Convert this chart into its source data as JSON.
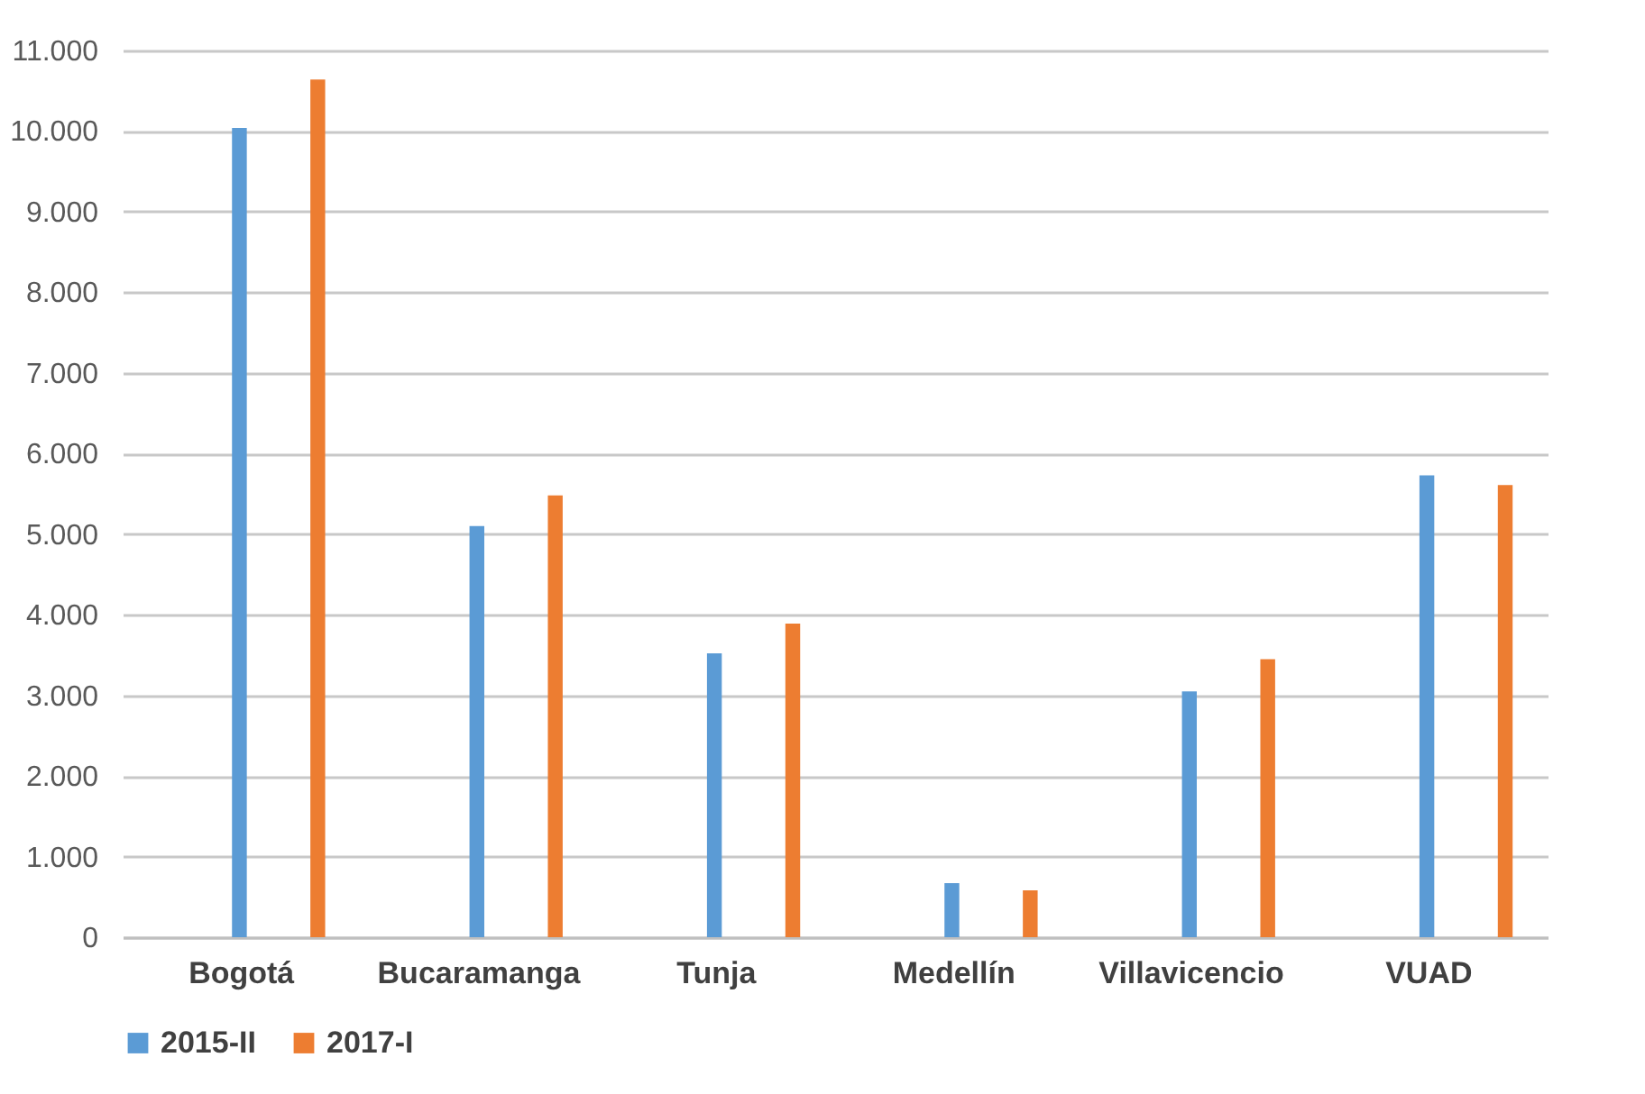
{
  "chart_data": {
    "type": "bar",
    "categories": [
      "Bogotá",
      "Bucaramanga",
      "Tunja",
      "Medellín",
      "Villavicencio",
      "VUAD"
    ],
    "series": [
      {
        "name": "2015-II",
        "color": "#5b9bd5",
        "values": [
          10040,
          5100,
          3520,
          670,
          3050,
          5730
        ]
      },
      {
        "name": "2017-I",
        "color": "#ed7d31",
        "values": [
          10640,
          5480,
          3890,
          580,
          3450,
          5610
        ]
      }
    ],
    "ylim": [
      0,
      11000
    ],
    "yticks": [
      {
        "value": 0,
        "label": "0"
      },
      {
        "value": 1000,
        "label": "1.000"
      },
      {
        "value": 2000,
        "label": "2.000"
      },
      {
        "value": 3000,
        "label": "3.000"
      },
      {
        "value": 4000,
        "label": "4.000"
      },
      {
        "value": 5000,
        "label": "5.000"
      },
      {
        "value": 6000,
        "label": "6.000"
      },
      {
        "value": 7000,
        "label": "7.000"
      },
      {
        "value": 8000,
        "label": "8.000"
      },
      {
        "value": 9000,
        "label": "9.000"
      },
      {
        "value": 10000,
        "label": "10.000"
      },
      {
        "value": 11000,
        "label": "11.000"
      }
    ],
    "grid": "y",
    "legend": "bottom"
  }
}
